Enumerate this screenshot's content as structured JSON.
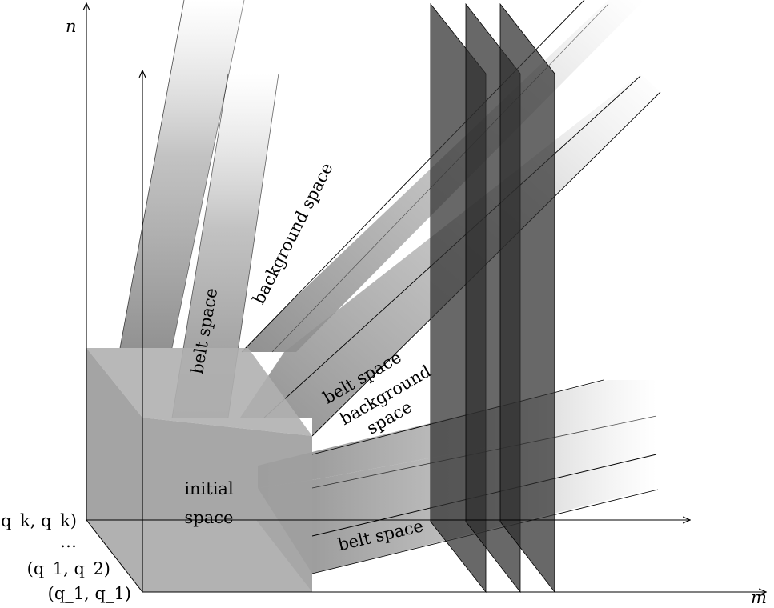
{
  "axes": {
    "y_label": "n",
    "x_label": "m",
    "inner_arrow_label": ""
  },
  "labels": {
    "initial_space": [
      "initial",
      "space"
    ],
    "belt_space_vertical": "belt space",
    "background_space_diagonal": "background space",
    "belt_space_diagonal": "belt space",
    "background_space_mid": [
      "background",
      "space"
    ],
    "belt_space_horizontal": "belt space"
  },
  "depth_labels": {
    "qk": "(q_k, q_k)",
    "dots": "…",
    "q12": "(q_1, q_2)",
    "q11": "(q_1, q_1)"
  },
  "colors": {
    "block_front": "#a0a0a0",
    "block_top": "#b8b8b8",
    "block_side": "#8e8e8e",
    "belt": "#8a8a8a",
    "plane": "#2e2e2e"
  }
}
